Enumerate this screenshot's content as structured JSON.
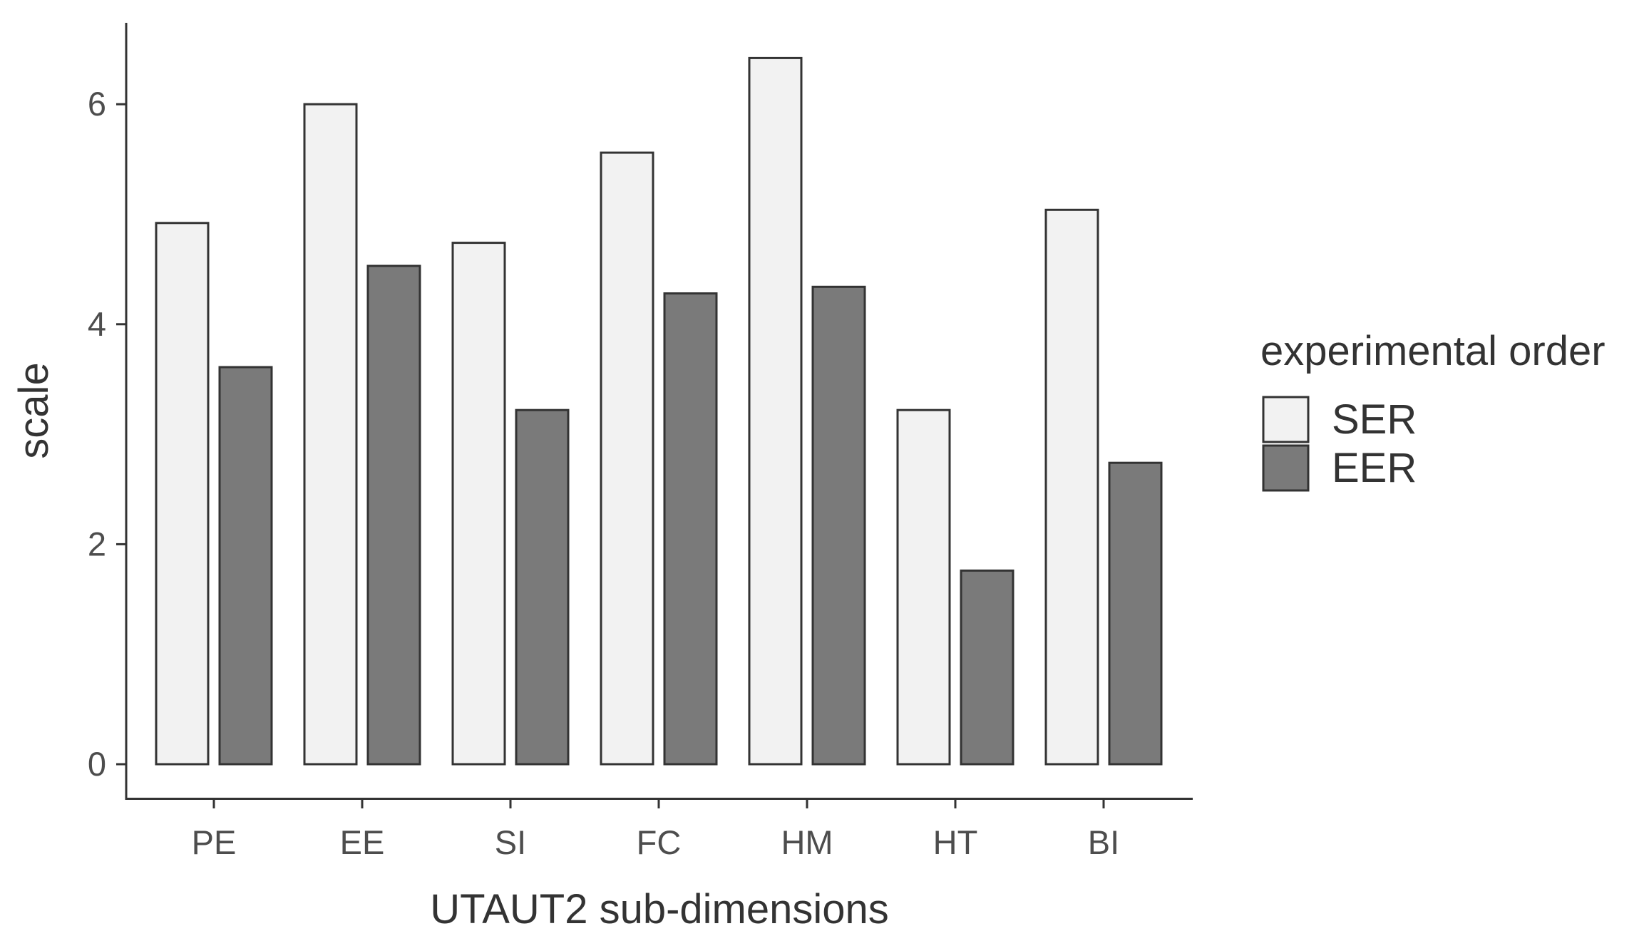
{
  "chart_data": {
    "type": "bar",
    "title": "",
    "xlabel": "UTAUT2 sub-dimensions",
    "ylabel": "scale",
    "categories": [
      "PE",
      "EE",
      "SI",
      "FC",
      "HM",
      "HT",
      "BI"
    ],
    "series": [
      {
        "name": "SER",
        "values": [
          4.92,
          6.0,
          4.74,
          5.56,
          6.42,
          3.22,
          5.04
        ],
        "color": "#f2f2f2"
      },
      {
        "name": "EER",
        "values": [
          3.61,
          4.53,
          3.22,
          4.28,
          4.34,
          1.76,
          2.74
        ],
        "color": "#7a7a7a"
      }
    ],
    "yticks": [
      "0",
      "2",
      "4",
      "6"
    ],
    "ylim": [
      -0.32,
      6.72
    ],
    "grid": false,
    "legend": {
      "title": "experimental order",
      "position": "right"
    }
  }
}
